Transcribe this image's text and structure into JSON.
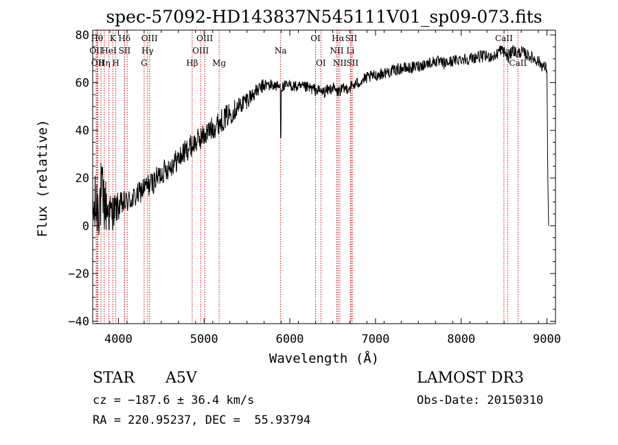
{
  "chart_data": {
    "type": "line",
    "title": "spec-57092-HD143837N545111V01_sp09-073.fits",
    "xlabel": "Wavelength (Å)",
    "ylabel": "Flux (relative)",
    "xlim": [
      3700,
      9100
    ],
    "ylim": [
      -41,
      82
    ],
    "x_ticks": [
      4000,
      5000,
      6000,
      7000,
      8000,
      9000
    ],
    "x_tick_labels": [
      "4000",
      "5000",
      "6000",
      "7000",
      "8000",
      "9000"
    ],
    "y_ticks": [
      -40,
      -20,
      0,
      20,
      40,
      60,
      80
    ],
    "y_tick_labels": [
      "−40",
      "−20",
      "0",
      "20",
      "40",
      "60",
      "80"
    ],
    "grid": false,
    "series": [
      {
        "x": [
          3700,
          3800,
          3900,
          4000,
          4100,
          4200,
          4300,
          4400,
          4500,
          4600,
          4700,
          4800,
          4900,
          5000,
          5100,
          5200,
          5300,
          5400,
          5500,
          5600,
          5700,
          5800,
          5900,
          6000,
          6100,
          6200,
          6300,
          6400,
          6500,
          6550,
          6600,
          6700,
          6800,
          6900,
          7000,
          7100,
          7200,
          7300,
          7400,
          7500,
          7600,
          7700,
          7800,
          7900,
          8000,
          8100,
          8200,
          8300,
          8400,
          8450,
          8500,
          8550,
          8600,
          8650,
          8700,
          8800,
          8900,
          8950,
          9000,
          9010,
          9020
        ],
        "y": [
          5,
          12,
          5,
          8,
          10,
          12,
          16,
          18,
          22,
          25,
          28,
          32,
          35,
          38,
          41,
          44,
          47,
          50,
          53,
          56,
          59,
          59,
          58,
          59,
          58,
          58,
          57,
          56,
          58,
          56,
          57,
          58,
          60,
          62,
          63,
          64,
          65,
          66,
          66,
          67,
          68,
          69,
          68,
          69,
          70,
          70,
          71,
          71,
          71,
          74,
          73,
          70,
          74,
          72,
          73,
          71,
          69,
          67,
          66,
          20,
          0
        ],
        "noise": [
          14,
          16,
          9,
          6,
          5,
          5,
          5,
          5,
          5,
          5,
          5,
          5,
          5,
          5,
          5,
          5,
          5,
          4,
          4,
          3,
          3,
          2.5,
          2.5,
          2.5,
          2.5,
          2.5,
          2.5,
          2.5,
          2.5,
          2.5,
          2.5,
          2.5,
          2.5,
          2.5,
          2.5,
          2.5,
          2.5,
          2.5,
          2.5,
          2.5,
          2.5,
          2.5,
          2.5,
          2.5,
          2.5,
          2.5,
          2.5,
          2.5,
          2.5,
          2.5,
          2.5,
          2.5,
          2.5,
          2.5,
          2.5,
          2.5,
          2.5,
          2.5,
          2.5,
          0,
          0
        ]
      }
    ],
    "line_markers": [
      {
        "x": 3750,
        "row": 0,
        "label": "Hθ"
      },
      {
        "x": 3797,
        "row": 0,
        "label": ""
      },
      {
        "x": 3740,
        "row": 1,
        "label": "OII"
      },
      {
        "x": 3760,
        "row": 2,
        "label": "OII"
      },
      {
        "x": 3835,
        "row": 2,
        "label": "Hη"
      },
      {
        "x": 3889,
        "row": 1,
        "label": "HeI"
      },
      {
        "x": 3934,
        "row": 0,
        "label": "K"
      },
      {
        "x": 3969,
        "row": 2,
        "label": "H"
      },
      {
        "x": 4070,
        "row": 0,
        "label": "Hδ"
      },
      {
        "x": 4072,
        "row": 1,
        "label": "SII"
      },
      {
        "x": 4102,
        "row": 0,
        "label": ""
      },
      {
        "x": 4300,
        "row": 2,
        "label": "G"
      },
      {
        "x": 4340,
        "row": 1,
        "label": "Hγ"
      },
      {
        "x": 4363,
        "row": 0,
        "label": "OIII"
      },
      {
        "x": 4861,
        "row": 2,
        "label": "Hβ"
      },
      {
        "x": 4959,
        "row": 1,
        "label": "OIII"
      },
      {
        "x": 5007,
        "row": 0,
        "label": "OIII"
      },
      {
        "x": 5175,
        "row": 2,
        "label": "Mg"
      },
      {
        "x": 5893,
        "row": 1,
        "label": "Na"
      },
      {
        "x": 6300,
        "row": 0,
        "label": "OI"
      },
      {
        "x": 6363,
        "row": 2,
        "label": "OI"
      },
      {
        "x": 6548,
        "row": 1,
        "label": "NII"
      },
      {
        "x": 6563,
        "row": 0,
        "label": "Hα"
      },
      {
        "x": 6583,
        "row": 2,
        "label": "NII"
      },
      {
        "x": 6707,
        "row": 1,
        "label": "Li"
      },
      {
        "x": 6716,
        "row": 0,
        "label": "SII"
      },
      {
        "x": 6731,
        "row": 2,
        "label": "SII"
      },
      {
        "x": 8498,
        "row": 0,
        "label": "CaII"
      },
      {
        "x": 8542,
        "row": 1,
        "label": "CaII"
      },
      {
        "x": 8662,
        "row": 2,
        "label": "CaII"
      }
    ],
    "annotations": {
      "class": "STAR",
      "subclass": "A5V",
      "survey": "LAMOST DR3",
      "cz": "cz = −187.6 ± 36.4 km/s",
      "obs_date": "Obs-Date: 20150310",
      "radec": "RA = 220.95237, DEC =  55.93794"
    }
  },
  "colors": {
    "spectrum": "#000000",
    "marker_line": "#cc0000",
    "axis": "#000000"
  }
}
